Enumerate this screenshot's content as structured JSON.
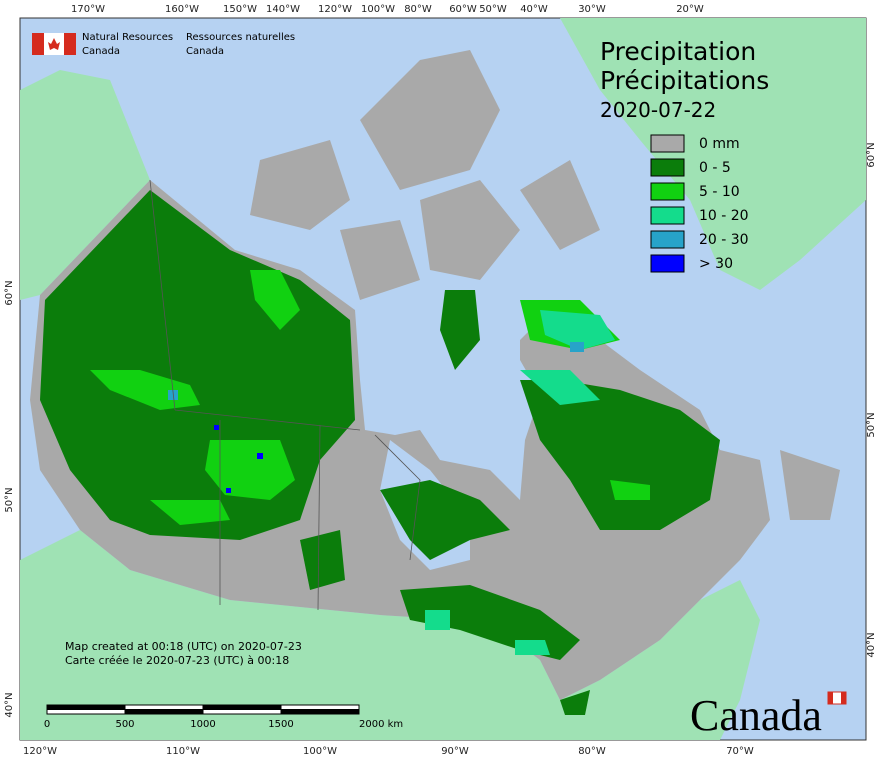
{
  "header": {
    "org_en": [
      "Natural Resources",
      "Canada"
    ],
    "org_fr": [
      "Ressources naturelles",
      "Canada"
    ]
  },
  "title": {
    "en": "Precipitation",
    "fr": "Précipitations",
    "date": "2020-07-22"
  },
  "legend": [
    {
      "label": "0 mm",
      "color": "#a9a9a9"
    },
    {
      "label": "0 - 5",
      "color": "#0b7d0b"
    },
    {
      "label": "5 - 10",
      "color": "#11d111"
    },
    {
      "label": "10 - 20",
      "color": "#14dc8c"
    },
    {
      "label": "20 - 30",
      "color": "#27a3c9"
    },
    {
      "label": "> 30",
      "color": "#0000ff"
    }
  ],
  "top_labels": [
    "170°W",
    "160°W",
    "150°W",
    "140°W",
    "120°W",
    "100°W",
    "80°W",
    "60°W",
    "50°W",
    "40°W",
    "30°W",
    "20°W"
  ],
  "bottom_labels": [
    "120°W",
    "110°W",
    "100°W",
    "90°W",
    "80°W",
    "70°W"
  ],
  "left_labels": [
    "60°N",
    "50°N",
    "40°N"
  ],
  "right_labels": [
    "60°N",
    "50°N",
    "40°N"
  ],
  "notes": [
    "Map created at 00:18 (UTC) on 2020-07-23",
    "Carte créée le 2020-07-23 (UTC) à 00:18"
  ],
  "scale_bar": [
    "0",
    "500",
    "1000",
    "1500",
    "2000 km"
  ],
  "wordmark": "Canada"
}
